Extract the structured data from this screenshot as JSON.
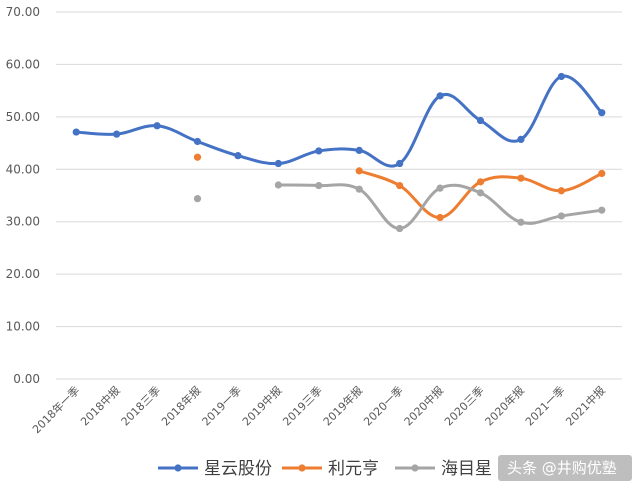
{
  "chart_data": {
    "type": "line",
    "categories": [
      "2018年一季",
      "2018中报",
      "2018三季",
      "2018年报",
      "2019一季",
      "2019中报",
      "2019三季",
      "2019年报",
      "2020一季",
      "2020中报",
      "2020三季",
      "2020年报",
      "2021一季",
      "2021中报"
    ],
    "y_ticks": [
      "0.00",
      "10.00",
      "20.00",
      "30.00",
      "40.00",
      "50.00",
      "60.00",
      "70.00"
    ],
    "ylim": [
      0,
      70
    ],
    "grid": true,
    "legend_position": "bottom",
    "series": [
      {
        "name": "星云股份",
        "color": "#4472C4",
        "values": [
          47.1,
          46.7,
          48.3,
          45.3,
          42.6,
          41.1,
          43.5,
          43.6,
          41.1,
          54.0,
          49.3,
          45.7,
          57.7,
          50.8
        ]
      },
      {
        "name": "利元亨",
        "color": "#ED7D31",
        "values": [
          null,
          null,
          null,
          42.3,
          null,
          null,
          null,
          39.7,
          36.9,
          30.8,
          37.6,
          38.3,
          35.9,
          39.2
        ]
      },
      {
        "name": "海目星",
        "color": "#A5A5A5",
        "values": [
          null,
          null,
          null,
          34.4,
          null,
          37.0,
          36.9,
          36.2,
          28.7,
          36.4,
          35.5,
          29.9,
          31.1,
          32.2
        ]
      }
    ]
  },
  "watermark": "头条 @井购优塾"
}
